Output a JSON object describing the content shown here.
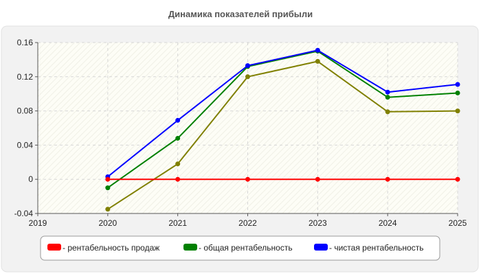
{
  "chart_data": {
    "type": "line",
    "title": "Динамика показателей прибыли",
    "x": [
      2019,
      2020,
      2021,
      2022,
      2023,
      2024,
      2025
    ],
    "x_ticks": [
      "2019",
      "2020",
      "2021",
      "2022",
      "2023",
      "2024",
      "2025"
    ],
    "y_ticks": [
      "-0.04",
      "0",
      "0.04",
      "0.08",
      "0.12",
      "0.16"
    ],
    "xlim": [
      2019,
      2025
    ],
    "ylim": [
      -0.04,
      0.16
    ],
    "grid": true,
    "legend_position": "bottom",
    "series": [
      {
        "name": "- рентабельность продаж",
        "color": "#ff0000",
        "x": [
          2020,
          2021,
          2022,
          2023,
          2024,
          2025
        ],
        "values": [
          0,
          0,
          0,
          0,
          0,
          0
        ]
      },
      {
        "name": "- общая рентабельность",
        "color": "#008000",
        "x": [
          2020,
          2021,
          2022,
          2023,
          2024,
          2025
        ],
        "values": [
          -0.01,
          0.048,
          0.132,
          0.15,
          0.096,
          0.101
        ]
      },
      {
        "name": "- чистая рентабельность",
        "color": "#0000ff",
        "x": [
          2020,
          2021,
          2022,
          2023,
          2024,
          2025
        ],
        "values": [
          0.003,
          0.069,
          0.133,
          0.151,
          0.102,
          0.111
        ]
      },
      {
        "name": "",
        "color": "#808000",
        "x": [
          2020,
          2021,
          2022,
          2023,
          2024,
          2025
        ],
        "values": [
          -0.035,
          0.018,
          0.12,
          0.138,
          0.079,
          0.08
        ]
      }
    ]
  }
}
